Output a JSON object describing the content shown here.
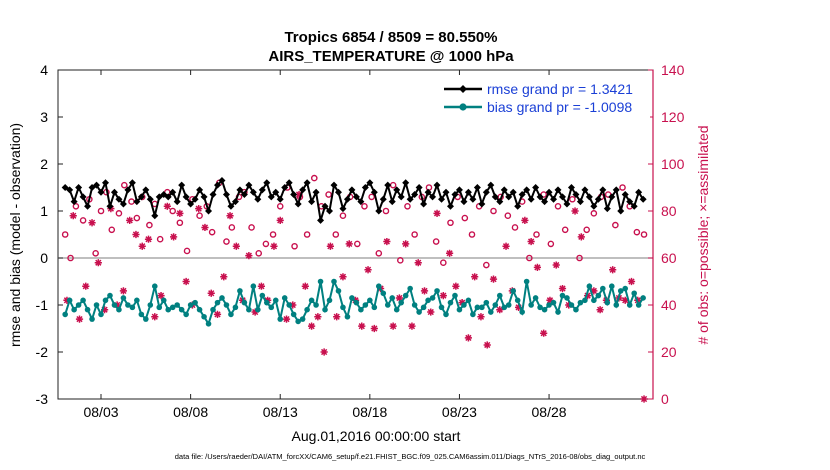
{
  "chart_data": {
    "type": "line",
    "title_line1": "Tropics 6854 / 8509 = 80.550%",
    "title_line2": "AIRS_TEMPERATURE @ 1000 hPa",
    "xlabel": "Aug.01,2016 00:00:00 start",
    "ylabel": "rmse and bias (model - observation)",
    "y2label": "# of obs: o=possible; ×=assimilated",
    "xlim": [
      0.6,
      33.8
    ],
    "ylim": [
      -3,
      4
    ],
    "y2lim": [
      0,
      140
    ],
    "x_ticks": [
      3,
      8,
      13,
      18,
      23,
      28
    ],
    "x_tick_labels": [
      "08/03",
      "08/08",
      "08/13",
      "08/18",
      "08/23",
      "08/28"
    ],
    "y_ticks": [
      -3,
      -2,
      -1,
      0,
      1,
      2,
      3,
      4
    ],
    "y_tick_labels": [
      "-3",
      "-2",
      "-1",
      "0",
      "1",
      "2",
      "3",
      "4"
    ],
    "y2_ticks": [
      0,
      20,
      40,
      60,
      80,
      100,
      120,
      140
    ],
    "y2_tick_labels": [
      "0",
      "20",
      "40",
      "60",
      "80",
      "100",
      "120",
      "140"
    ],
    "zero_line": 0,
    "legend": [
      "rmse grand pr = 1.3421",
      "bias grand pr = -1.0098"
    ],
    "footer": "data file: /Users/raeder/DAI/ATM_forcXX/CAM6_setup/f.e21.FHIST_BGC.f09_025.CAM6assim.011/Diags_NTrS_2016-08/obs_diag_output.nc",
    "colors": {
      "rmse": "#000000",
      "bias": "#008080",
      "obs": "#c8104e",
      "zero": "#999999",
      "legend_text": "#1a3fd6"
    },
    "series": [
      {
        "name": "rmse",
        "x": [
          1.0,
          1.25,
          1.5,
          1.75,
          2.0,
          2.25,
          2.5,
          2.75,
          3.0,
          3.25,
          3.5,
          3.75,
          4.0,
          4.25,
          4.5,
          4.75,
          5.0,
          5.25,
          5.5,
          5.75,
          6.0,
          6.25,
          6.5,
          6.75,
          7.0,
          7.25,
          7.5,
          7.75,
          8.0,
          8.25,
          8.5,
          8.75,
          9.0,
          9.25,
          9.5,
          9.75,
          10.0,
          10.25,
          10.5,
          10.75,
          11.0,
          11.25,
          11.5,
          11.75,
          12.0,
          12.25,
          12.5,
          12.75,
          13.0,
          13.25,
          13.5,
          13.75,
          14.0,
          14.25,
          14.5,
          14.75,
          15.0,
          15.25,
          15.5,
          15.75,
          16.0,
          16.25,
          16.5,
          16.75,
          17.0,
          17.25,
          17.5,
          17.75,
          18.0,
          18.25,
          18.5,
          18.75,
          19.0,
          19.25,
          19.5,
          19.75,
          20.0,
          20.25,
          20.5,
          20.75,
          21.0,
          21.25,
          21.5,
          21.75,
          22.0,
          22.25,
          22.5,
          22.75,
          23.0,
          23.25,
          23.5,
          23.75,
          24.0,
          24.25,
          24.5,
          24.75,
          25.0,
          25.25,
          25.5,
          25.75,
          26.0,
          26.25,
          26.5,
          26.75,
          27.0,
          27.25,
          27.5,
          27.75,
          28.0,
          28.25,
          28.5,
          28.75,
          29.0,
          29.25,
          29.5,
          29.75,
          30.0,
          30.25,
          30.5,
          30.75,
          31.0,
          31.25,
          31.5,
          31.75,
          32.0,
          32.25,
          32.5,
          32.75,
          33.0,
          33.25
        ],
        "values": [
          1.5,
          1.45,
          1.2,
          1.5,
          1.3,
          1.1,
          1.5,
          1.55,
          1.4,
          1.6,
          1.1,
          1.4,
          1.25,
          1.15,
          1.45,
          1.6,
          1.2,
          1.3,
          1.45,
          1.25,
          0.9,
          1.3,
          1.35,
          1.3,
          1.4,
          1.2,
          1.55,
          1.3,
          1.15,
          1.25,
          1.45,
          1.3,
          1.0,
          1.35,
          1.55,
          1.65,
          1.35,
          1.1,
          1.2,
          1.45,
          1.35,
          1.55,
          1.4,
          1.25,
          1.45,
          1.6,
          1.3,
          1.4,
          1.25,
          1.5,
          1.6,
          1.35,
          1.15,
          1.45,
          1.6,
          1.2,
          1.4,
          0.8,
          1.1,
          1.0,
          1.55,
          1.4,
          1.05,
          1.25,
          1.45,
          1.3,
          1.2,
          1.5,
          1.6,
          1.4,
          1.0,
          1.25,
          1.55,
          1.2,
          1.45,
          1.3,
          1.6,
          1.25,
          1.35,
          1.5,
          1.15,
          1.4,
          1.3,
          1.55,
          1.25,
          1.4,
          1.1,
          1.35,
          1.45,
          1.2,
          1.4,
          1.25,
          1.5,
          1.15,
          1.4,
          1.55,
          1.3,
          1.2,
          1.45,
          1.3,
          1.4,
          1.1,
          1.35,
          1.45,
          1.25,
          1.5,
          1.3,
          1.2,
          1.4,
          1.25,
          1.45,
          1.3,
          1.15,
          1.5,
          1.35,
          1.2,
          1.45,
          1.3,
          1.1,
          1.25,
          1.45,
          1.05,
          1.3,
          1.45,
          1.0,
          1.35,
          1.2,
          1.1,
          1.4,
          1.25
        ]
      },
      {
        "name": "bias",
        "x": [
          1.0,
          1.25,
          1.5,
          1.75,
          2.0,
          2.25,
          2.5,
          2.75,
          3.0,
          3.25,
          3.5,
          3.75,
          4.0,
          4.25,
          4.5,
          4.75,
          5.0,
          5.25,
          5.5,
          5.75,
          6.0,
          6.25,
          6.5,
          6.75,
          7.0,
          7.25,
          7.5,
          7.75,
          8.0,
          8.25,
          8.5,
          8.75,
          9.0,
          9.25,
          9.5,
          9.75,
          10.0,
          10.25,
          10.5,
          10.75,
          11.0,
          11.25,
          11.5,
          11.75,
          12.0,
          12.25,
          12.5,
          12.75,
          13.0,
          13.25,
          13.5,
          13.75,
          14.0,
          14.25,
          14.5,
          14.75,
          15.0,
          15.25,
          15.5,
          15.75,
          16.0,
          16.25,
          16.5,
          16.75,
          17.0,
          17.25,
          17.5,
          17.75,
          18.0,
          18.25,
          18.5,
          18.75,
          19.0,
          19.25,
          19.5,
          19.75,
          20.0,
          20.25,
          20.5,
          20.75,
          21.0,
          21.25,
          21.5,
          21.75,
          22.0,
          22.25,
          22.5,
          22.75,
          23.0,
          23.25,
          23.5,
          23.75,
          24.0,
          24.25,
          24.5,
          24.75,
          25.0,
          25.25,
          25.5,
          25.75,
          26.0,
          26.25,
          26.5,
          26.75,
          27.0,
          27.25,
          27.5,
          27.75,
          28.0,
          28.25,
          28.5,
          28.75,
          29.0,
          29.25,
          29.5,
          29.75,
          30.0,
          30.25,
          30.5,
          30.75,
          31.0,
          31.25,
          31.5,
          31.75,
          32.0,
          32.25,
          32.5,
          32.75,
          33.0,
          33.25
        ],
        "values": [
          -1.2,
          -0.9,
          -1.1,
          -1.0,
          -0.9,
          -1.1,
          -1.3,
          -1.0,
          -1.2,
          -0.9,
          -0.8,
          -1.0,
          -1.1,
          -0.85,
          -1.0,
          -1.05,
          -0.9,
          -1.2,
          -1.3,
          -1.0,
          -0.6,
          -1.05,
          -0.9,
          -1.1,
          -1.05,
          -1.0,
          -1.1,
          -1.2,
          -1.0,
          -0.95,
          -1.1,
          -1.25,
          -1.4,
          -1.1,
          -0.95,
          -0.85,
          -1.0,
          -1.2,
          -1.05,
          -0.7,
          -0.95,
          -1.1,
          -0.6,
          -1.1,
          -0.8,
          -0.95,
          -1.05,
          -0.9,
          -1.3,
          -0.85,
          -1.0,
          -1.2,
          -1.35,
          -1.3,
          -1.1,
          -0.9,
          -1.0,
          -0.5,
          -1.1,
          -0.9,
          -0.5,
          -0.7,
          -1.05,
          -1.25,
          -0.85,
          -0.95,
          -1.1,
          -1.0,
          -0.9,
          -1.05,
          -0.6,
          -0.75,
          -1.0,
          -0.85,
          -1.1,
          -0.95,
          -0.8,
          -0.65,
          -1.0,
          -1.15,
          -1.05,
          -0.9,
          -0.85,
          -0.7,
          -1.05,
          -1.2,
          -0.95,
          -0.8,
          -1.1,
          -1.0,
          -0.9,
          -1.2,
          -1.05,
          -1.05,
          -0.95,
          -1.15,
          -1.0,
          -0.8,
          -1.05,
          -1.0,
          -0.7,
          -0.9,
          -1.15,
          -0.5,
          -1.0,
          -0.85,
          -1.05,
          -1.1,
          -1.0,
          -0.95,
          -1.15,
          -0.8,
          -0.85,
          -1.0,
          -1.1,
          -0.95,
          -0.9,
          -0.6,
          -0.9,
          -0.8,
          -0.65,
          -0.95,
          -0.6,
          -1.0,
          -0.7,
          -0.65,
          -1.0,
          -0.75,
          -1.0,
          -0.85
        ]
      }
    ],
    "obs_possible": {
      "x": [
        1.0,
        1.3,
        1.6,
        2.0,
        2.35,
        2.7,
        3.0,
        3.3,
        3.6,
        4.0,
        4.3,
        4.7,
        5.0,
        5.3,
        5.7,
        6.0,
        6.3,
        6.7,
        7.0,
        7.4,
        7.8,
        8.1,
        8.5,
        8.9,
        9.2,
        9.6,
        10.0,
        10.3,
        10.7,
        11.0,
        11.4,
        11.8,
        12.2,
        12.6,
        13.0,
        13.4,
        13.8,
        14.1,
        14.5,
        14.9,
        15.3,
        15.7,
        16.1,
        16.5,
        16.9,
        17.3,
        17.7,
        18.1,
        18.5,
        18.9,
        19.3,
        19.7,
        20.1,
        20.5,
        20.9,
        21.3,
        21.7,
        22.1,
        22.5,
        22.9,
        23.3,
        23.7,
        24.1,
        24.5,
        24.9,
        25.3,
        25.7,
        26.1,
        26.5,
        26.9,
        27.3,
        27.7,
        28.1,
        28.5,
        28.9,
        29.3,
        29.7,
        30.1,
        30.5,
        30.9,
        31.3,
        31.7,
        32.1,
        32.5,
        32.9,
        33.3
      ],
      "values": [
        70,
        60,
        82,
        76,
        85,
        62,
        80,
        88,
        72,
        79,
        91,
        84,
        77,
        86,
        74,
        83,
        68,
        88,
        80,
        75,
        63,
        85,
        78,
        82,
        71,
        92,
        67,
        73,
        86,
        88,
        73,
        62,
        66,
        70,
        82,
        90,
        65,
        86,
        70,
        94,
        82,
        87,
        70,
        78,
        86,
        66,
        82,
        86,
        62,
        80,
        91,
        59,
        82,
        70,
        86,
        90,
        67,
        58,
        75,
        86,
        77,
        70,
        82,
        57,
        80,
        86,
        78,
        73,
        84,
        60,
        70,
        87,
        66,
        82,
        72,
        85,
        60,
        72,
        79,
        86,
        87,
        74,
        90,
        82,
        71,
        70
      ]
    },
    "obs_assimilated": {
      "x": [
        1.1,
        1.45,
        1.8,
        2.15,
        2.5,
        2.85,
        3.2,
        3.55,
        3.9,
        4.25,
        4.6,
        4.95,
        5.3,
        5.65,
        6.0,
        6.35,
        6.7,
        7.05,
        7.4,
        7.75,
        8.1,
        8.45,
        8.8,
        9.15,
        9.5,
        9.85,
        10.2,
        10.55,
        10.9,
        11.25,
        11.6,
        11.95,
        12.3,
        12.65,
        13.0,
        13.35,
        13.7,
        14.05,
        14.4,
        14.75,
        15.1,
        15.45,
        15.8,
        16.15,
        16.5,
        16.85,
        17.2,
        17.55,
        17.9,
        18.25,
        18.6,
        18.95,
        19.3,
        19.65,
        20.0,
        20.35,
        20.7,
        21.05,
        21.4,
        21.75,
        22.1,
        22.45,
        22.8,
        23.15,
        23.5,
        23.85,
        24.2,
        24.55,
        24.9,
        25.25,
        25.6,
        25.95,
        26.3,
        26.65,
        27.0,
        27.35,
        27.7,
        28.05,
        28.4,
        28.75,
        29.1,
        29.45,
        29.8,
        30.15,
        30.5,
        30.85,
        31.2,
        31.55,
        31.9,
        32.25,
        32.6,
        32.95,
        33.3
      ],
      "values": [
        42,
        78,
        34,
        48,
        75,
        58,
        38,
        81,
        40,
        46,
        76,
        70,
        65,
        68,
        35,
        44,
        82,
        69,
        79,
        50,
        40,
        81,
        73,
        45,
        36,
        52,
        78,
        65,
        42,
        61,
        37,
        48,
        42,
        65,
        76,
        34,
        40,
        87,
        48,
        31,
        35,
        20,
        65,
        35,
        52,
        66,
        42,
        31,
        55,
        30,
        47,
        67,
        31,
        43,
        66,
        31,
        58,
        46,
        37,
        79,
        44,
        62,
        48,
        41,
        26,
        52,
        35,
        23,
        51,
        38,
        65,
        46,
        39,
        76,
        67,
        56,
        28,
        42,
        57,
        47,
        40,
        80,
        69,
        44,
        46,
        38,
        42,
        55,
        43,
        42,
        50,
        42,
        0
      ]
    }
  }
}
